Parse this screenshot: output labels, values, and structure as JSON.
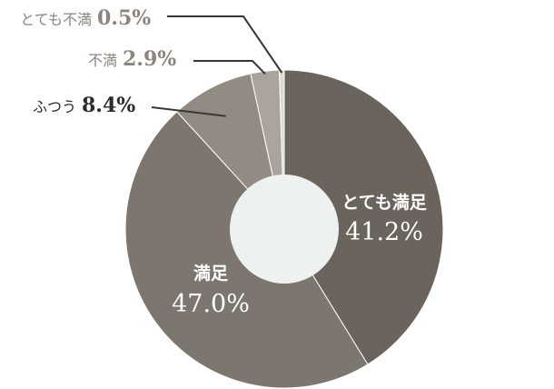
{
  "chart_data": {
    "type": "pie",
    "donut": true,
    "title": "",
    "slices": [
      {
        "label": "とても満足",
        "value": 41.2,
        "value_text": "41.2%",
        "color": "#6b645d"
      },
      {
        "label": "満足",
        "value": 47.0,
        "value_text": "47.0%",
        "color": "#7c766f"
      },
      {
        "label": "ふつう",
        "value": 8.4,
        "value_text": "8.4%",
        "color": "#928b83"
      },
      {
        "label": "不満",
        "value": 2.9,
        "value_text": "2.9%",
        "color": "#aba49d"
      },
      {
        "label": "とても不満",
        "value": 0.5,
        "value_text": "0.5%",
        "color": "#dcd8d3"
      }
    ],
    "center_color": "#edf1f0",
    "leader_line_color": "#3b3632"
  }
}
